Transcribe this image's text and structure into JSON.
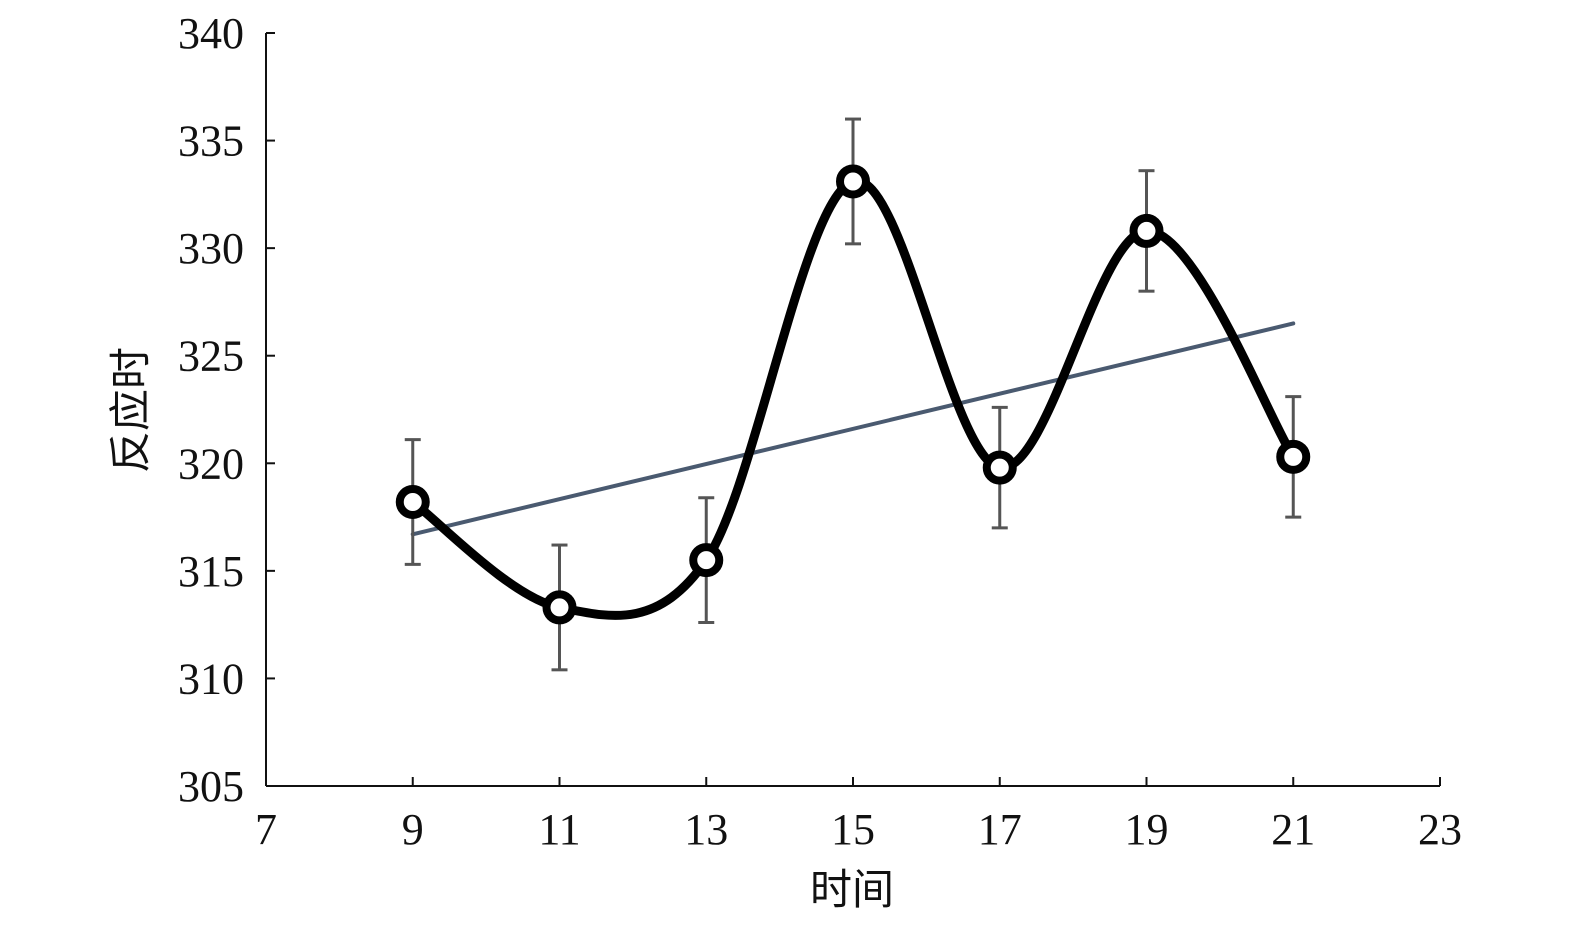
{
  "colors": {
    "data_line": "#000000",
    "trend_line": "#4a5a70",
    "error_bar": "#555555",
    "axis": "#111111",
    "marker_fill": "#ffffff"
  },
  "chart_data": {
    "type": "line",
    "title": "",
    "xlabel": "时间",
    "ylabel": "反应时",
    "xlim": [
      7,
      23
    ],
    "ylim": [
      305,
      340
    ],
    "xticks": [
      7,
      9,
      11,
      13,
      15,
      17,
      19,
      21,
      23
    ],
    "yticks": [
      305,
      310,
      315,
      320,
      325,
      330,
      335,
      340
    ],
    "grid": false,
    "legend": "none",
    "series": [
      {
        "style": "smoothed-line-with-markers",
        "x": [
          9,
          11,
          13,
          15,
          17,
          19,
          21
        ],
        "y": [
          318.2,
          313.3,
          315.5,
          333.1,
          319.8,
          330.8,
          320.3
        ],
        "error": [
          2.9,
          2.9,
          2.9,
          2.9,
          2.8,
          2.8,
          2.8
        ]
      },
      {
        "style": "linear-trendline",
        "x": [
          9,
          21
        ],
        "y": [
          316.7,
          326.5
        ]
      }
    ]
  }
}
